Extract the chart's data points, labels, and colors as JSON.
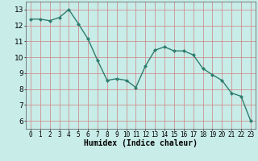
{
  "x": [
    0,
    1,
    2,
    3,
    4,
    5,
    6,
    7,
    8,
    9,
    10,
    11,
    12,
    13,
    14,
    15,
    16,
    17,
    18,
    19,
    20,
    21,
    22,
    23
  ],
  "y": [
    12.4,
    12.4,
    12.3,
    12.5,
    13.0,
    12.1,
    11.15,
    9.8,
    8.55,
    8.65,
    8.55,
    8.1,
    9.45,
    10.45,
    10.65,
    10.4,
    10.4,
    10.15,
    9.3,
    8.9,
    8.55,
    7.75,
    7.55,
    6.0
  ],
  "line_color": "#2e7d6e",
  "marker": "D",
  "marker_size": 2.0,
  "line_width": 1.0,
  "bg_color": "#c8ece8",
  "grid_color": "#d08080",
  "xlabel": "Humidex (Indice chaleur)",
  "xlim": [
    -0.5,
    23.5
  ],
  "ylim": [
    5.5,
    13.5
  ],
  "yticks": [
    6,
    7,
    8,
    9,
    10,
    11,
    12,
    13
  ],
  "xticks": [
    0,
    1,
    2,
    3,
    4,
    5,
    6,
    7,
    8,
    9,
    10,
    11,
    12,
    13,
    14,
    15,
    16,
    17,
    18,
    19,
    20,
    21,
    22,
    23
  ],
  "xlabel_fontsize": 7,
  "tick_fontsize": 6.5
}
